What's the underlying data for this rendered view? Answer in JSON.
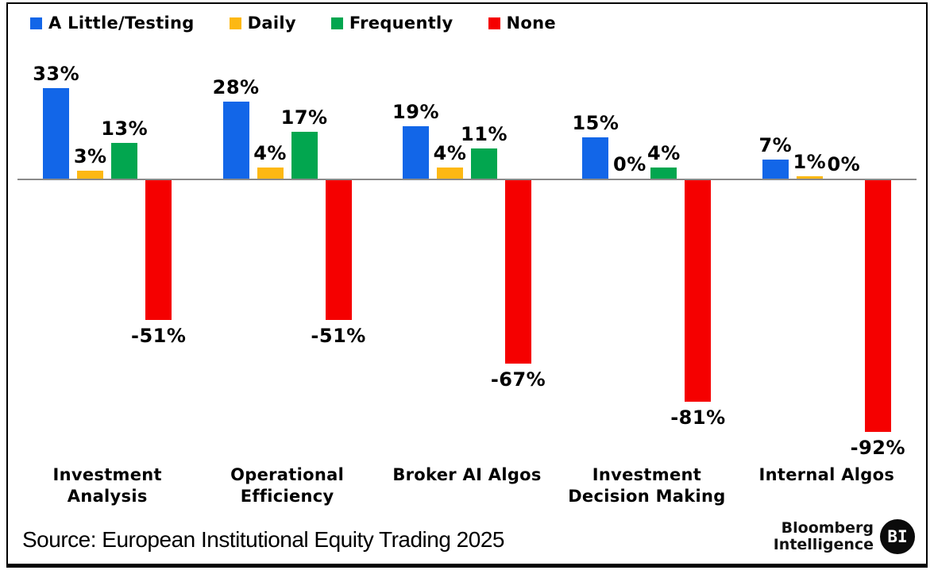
{
  "chart_data": {
    "type": "bar",
    "title": "",
    "xlabel": "",
    "ylabel": "",
    "value_suffix": "%",
    "grid": false,
    "legend_position": "top-left",
    "baseline": 0,
    "ylim": [
      -100,
      40
    ],
    "categories": [
      "Investment Analysis",
      "Operational Efficiency",
      "Broker AI Algos",
      "Investment Decision Making",
      "Internal Algos"
    ],
    "category_label_lines": [
      [
        "Investment",
        "Analysis"
      ],
      [
        "Operational",
        "Efficiency"
      ],
      [
        "Broker AI Algos"
      ],
      [
        "Investment",
        "Decision Making"
      ],
      [
        "Internal Algos"
      ]
    ],
    "series": [
      {
        "name": "A Little/Testing",
        "color": "#1266E8",
        "values": [
          33,
          28,
          19,
          15,
          7
        ]
      },
      {
        "name": "Daily",
        "color": "#FDB813",
        "values": [
          3,
          4,
          4,
          0,
          1
        ]
      },
      {
        "name": "Frequently",
        "color": "#02A64F",
        "values": [
          13,
          17,
          11,
          4,
          0
        ]
      },
      {
        "name": "None",
        "color": "#F50000",
        "values": [
          -51,
          -51,
          -67,
          -81,
          -92
        ]
      }
    ],
    "data_labels": [
      [
        "33%",
        "3%",
        "13%",
        "-51%"
      ],
      [
        "28%",
        "4%",
        "17%",
        "-51%"
      ],
      [
        "19%",
        "4%",
        "11%",
        "-67%"
      ],
      [
        "15%",
        "0%",
        "4%",
        "-81%"
      ],
      [
        "7%",
        "1%",
        "0%",
        "-92%"
      ]
    ],
    "axis_color": "#8a8a8a"
  },
  "footer": {
    "source": "Source: European Institutional Equity Trading 2025",
    "brand_line1": "Bloomberg",
    "brand_line2": "Intelligence",
    "brand_badge": "BI"
  }
}
